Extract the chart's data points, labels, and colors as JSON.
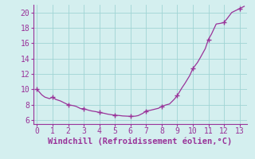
{
  "x": [
    0,
    0.3,
    0.5,
    0.8,
    1.0,
    1.2,
    1.5,
    1.8,
    2.0,
    2.3,
    2.5,
    2.8,
    3.0,
    3.3,
    3.5,
    3.8,
    4.0,
    4.3,
    4.5,
    4.8,
    5.0,
    5.3,
    5.5,
    5.8,
    6.0,
    6.3,
    6.5,
    6.8,
    7.0,
    7.3,
    7.5,
    7.8,
    8.0,
    8.3,
    8.5,
    8.8,
    9.0,
    9.3,
    9.5,
    9.8,
    10.0,
    10.3,
    10.5,
    10.8,
    11.0,
    11.2,
    11.5,
    11.8,
    12.0,
    12.2,
    12.5,
    12.8,
    13.0,
    13.3
  ],
  "y": [
    10.0,
    9.3,
    9.0,
    8.8,
    9.0,
    8.7,
    8.5,
    8.2,
    8.0,
    7.9,
    7.8,
    7.5,
    7.5,
    7.3,
    7.2,
    7.1,
    7.0,
    6.9,
    6.8,
    6.7,
    6.65,
    6.6,
    6.55,
    6.52,
    6.5,
    6.52,
    6.6,
    6.9,
    7.2,
    7.3,
    7.4,
    7.55,
    7.8,
    8.0,
    8.1,
    8.7,
    9.2,
    10.2,
    10.8,
    11.8,
    12.7,
    13.5,
    14.2,
    15.3,
    16.5,
    17.2,
    18.5,
    18.6,
    18.7,
    19.2,
    20.0,
    20.3,
    20.5,
    20.8
  ],
  "marker_x": [
    0,
    1,
    2,
    3,
    4,
    5,
    6,
    7,
    8,
    9,
    10,
    11,
    12,
    13
  ],
  "marker_y": [
    10.0,
    9.0,
    8.0,
    7.5,
    7.0,
    6.65,
    6.5,
    7.2,
    7.8,
    9.2,
    12.7,
    16.5,
    18.7,
    20.5
  ],
  "line_color": "#993399",
  "marker_color": "#993399",
  "bg_color": "#d4efef",
  "grid_color": "#a0d4d4",
  "spine_color": "#993399",
  "tick_color": "#993399",
  "xlabel": "Windchill (Refroidissement éolien,°C)",
  "xlim": [
    -0.25,
    13.5
  ],
  "ylim": [
    5.5,
    21.0
  ],
  "xticks": [
    0,
    1,
    2,
    3,
    4,
    5,
    6,
    7,
    8,
    9,
    10,
    11,
    12,
    13
  ],
  "yticks": [
    6,
    8,
    10,
    12,
    14,
    16,
    18,
    20
  ],
  "xlabel_fontsize": 7.5,
  "tick_fontsize": 7.0,
  "figsize": [
    3.2,
    2.0
  ],
  "dpi": 100
}
